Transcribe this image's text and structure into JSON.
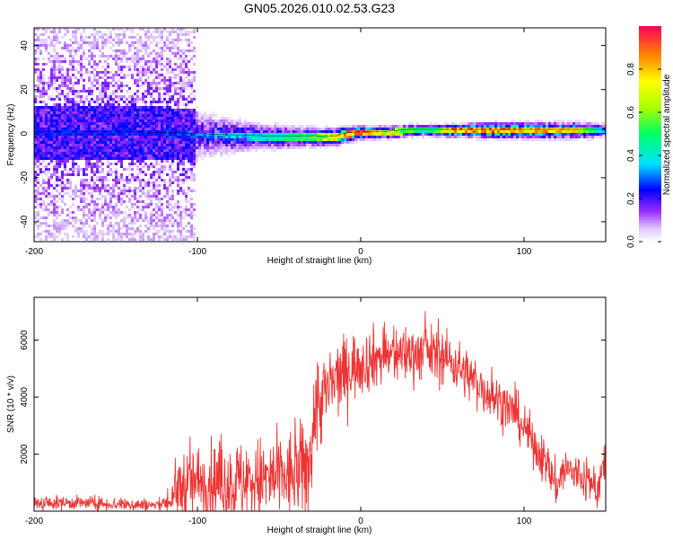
{
  "figure": {
    "title": "GN05.2026.010.02.53.G23"
  },
  "chart_data": [
    {
      "type": "heatmap",
      "xlabel": "Height of straight line (km)",
      "ylabel": "Frequency (Hz)",
      "xlim": [
        -200,
        150
      ],
      "ylim": [
        -49,
        48
      ],
      "xticks": [
        "-200",
        "-100",
        "0",
        "100"
      ],
      "xtick_values": [
        -200,
        -100,
        0,
        100
      ],
      "yticks": [
        "-40",
        "-20",
        "0",
        "20",
        "40"
      ],
      "ytick_values": [
        -40,
        -20,
        0,
        20,
        40
      ],
      "grid": false,
      "colormap": "rainbow",
      "colorbar": {
        "label": "Normalized spectral amplitude",
        "ticks": [
          "0.0",
          "0.2",
          "0.4",
          "0.6",
          "0.8"
        ],
        "tick_values": [
          0.0,
          0.2,
          0.4,
          0.6,
          0.8
        ],
        "range": [
          0,
          1
        ]
      },
      "centerline": {
        "x": [
          -200,
          -140,
          -100,
          -60,
          -30,
          -15,
          -12,
          0,
          15,
          30,
          60,
          80,
          100,
          120,
          150
        ],
        "y": [
          1,
          1,
          0,
          -1,
          -1,
          -1,
          0,
          1,
          1,
          2,
          2,
          2,
          2,
          2,
          2
        ]
      },
      "spread_hz": {
        "x": [
          -200,
          -110,
          -100,
          -60,
          -30,
          -10,
          0,
          60,
          80,
          120,
          150
        ],
        "y": [
          45,
          45,
          12,
          6,
          4,
          3,
          2,
          2,
          3,
          3,
          3
        ]
      },
      "peak_amplitude": {
        "x": [
          -200,
          -110,
          -100,
          -60,
          -30,
          -15,
          -10,
          0,
          15,
          40,
          55,
          80,
          110,
          130,
          150
        ],
        "y": [
          0.28,
          0.3,
          0.35,
          0.45,
          0.6,
          0.85,
          0.98,
          1.0,
          0.8,
          0.5,
          0.95,
          0.98,
          0.92,
          0.85,
          0.3
        ]
      }
    },
    {
      "type": "line",
      "xlabel": "Height of straight line (km)",
      "ylabel": "SNR (10 * v/v)",
      "xlim": [
        -200,
        150
      ],
      "ylim": [
        0,
        7500
      ],
      "xticks": [
        "-200",
        "-100",
        "0",
        "100"
      ],
      "xtick_values": [
        -200,
        -100,
        0,
        100
      ],
      "yticks": [
        "2000",
        "4000",
        "6000"
      ],
      "ytick_values": [
        2000,
        4000,
        6000
      ],
      "grid": false,
      "series": [
        {
          "color": "#ee3333",
          "envelope_x": [
            -200,
            -180,
            -150,
            -125,
            -115,
            -110,
            -100,
            -80,
            -60,
            -45,
            -32,
            -28,
            -24,
            -20,
            -15,
            -5,
            10,
            25,
            40,
            55,
            75,
            95,
            110,
            120,
            125,
            135,
            145,
            150
          ],
          "envelope_y": [
            250,
            300,
            250,
            200,
            400,
            900,
            1000,
            1000,
            1100,
            1200,
            1500,
            3500,
            4000,
            4200,
            4600,
            5100,
            5400,
            5500,
            5600,
            5300,
            4300,
            3400,
            2000,
            900,
            1500,
            1200,
            800,
            1700
          ],
          "noise_x": [
            -200,
            -120,
            -110,
            -40,
            -30,
            -20,
            0,
            50,
            100,
            150
          ],
          "noise_y": [
            150,
            150,
            800,
            1000,
            1200,
            900,
            700,
            600,
            500,
            500
          ]
        }
      ]
    }
  ]
}
